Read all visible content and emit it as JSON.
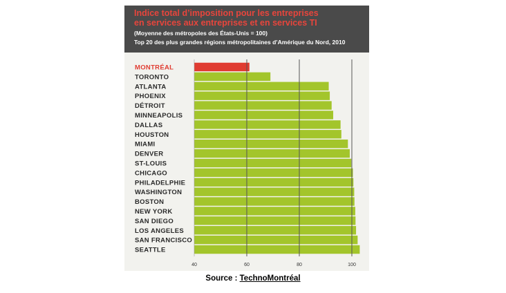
{
  "header": {
    "title_line1": "Indice total d’imposition pour les entreprises",
    "title_line2": "en services aux entreprises et en services TI",
    "subtitle_line1": "(Moyenne des métropoles des États-Unis = 100)",
    "subtitle_line2": "Top 20 des plus grandes régions métropolitaines d’Amérique du Nord, 2010"
  },
  "colors": {
    "highlight": "#e03c31",
    "bar": "#a3c52b",
    "header_bg": "#4a4a4a",
    "title": "#e8453c",
    "grid": "#555555"
  },
  "chart_data": {
    "type": "bar",
    "orientation": "horizontal",
    "title": "Indice total d’imposition pour les entreprises en services aux entreprises et en services TI",
    "subtitle": "(Moyenne des métropoles des États-Unis = 100) Top 20 des plus grandes régions métropolitaines d’Amérique du Nord, 2010",
    "categories": [
      "MONTRÉAL",
      "TORONTO",
      "ATLANTA",
      "PHOENIX",
      "DÉTROIT",
      "MINNEAPOLIS",
      "DALLAS",
      "HOUSTON",
      "MIAMI",
      "DENVER",
      "ST-LOUIS",
      "CHICAGO",
      "PHILADELPHIE",
      "WASHINGTON",
      "BOSTON",
      "NEW YORK",
      "SAN DIEGO",
      "LOS ANGELES",
      "SAN FRANCISCO",
      "SEATTLE"
    ],
    "values": [
      61.0,
      69.0,
      91.2,
      91.6,
      92.3,
      92.9,
      95.7,
      96.0,
      98.5,
      99.2,
      99.8,
      100.4,
      100.6,
      100.9,
      101.0,
      101.3,
      101.4,
      101.6,
      102.2,
      103.0
    ],
    "highlight_category": "MONTRÉAL",
    "xlim": [
      40,
      105
    ],
    "xticks": [
      40,
      60,
      80,
      100
    ],
    "gridlines_at": [
      60,
      80,
      100
    ],
    "xlabel": "",
    "ylabel": ""
  },
  "source": {
    "prefix": "Source : ",
    "name": "TechnoMontréal"
  }
}
